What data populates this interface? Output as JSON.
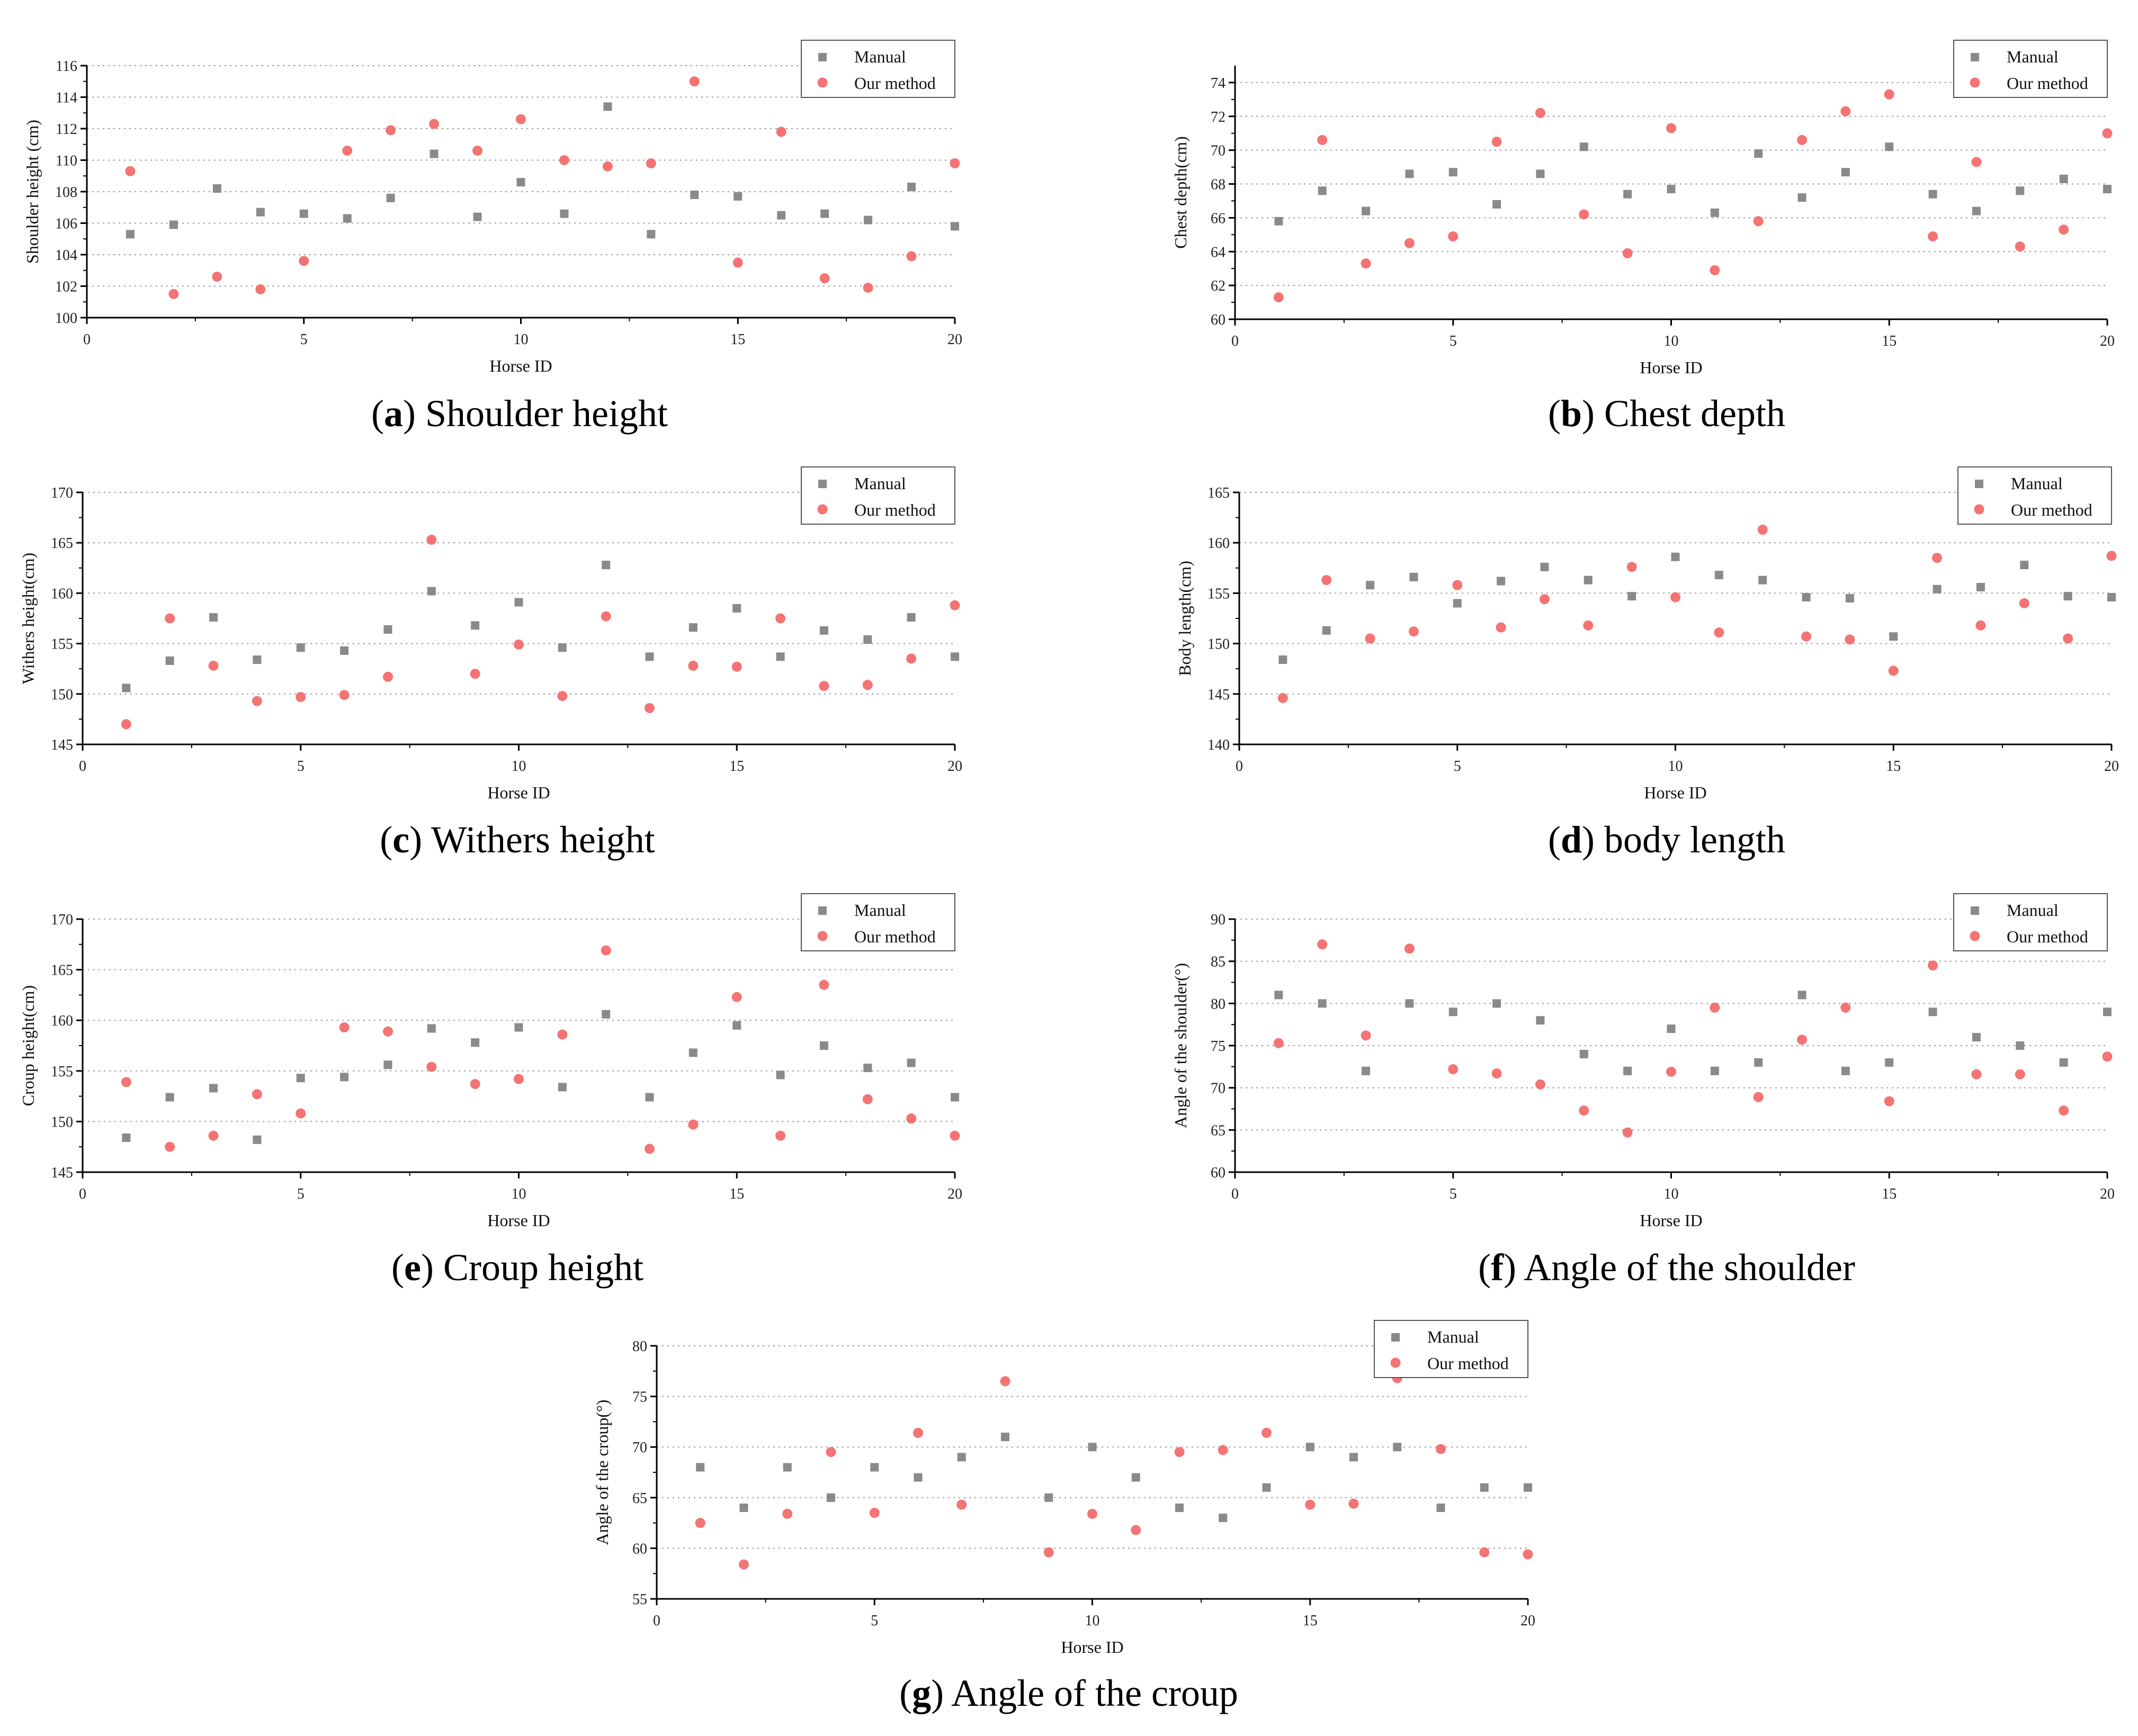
{
  "colors": {
    "manual": "#8a8a8a",
    "our_method": "#f47373",
    "grid": "#9a9a9a",
    "axis": "#000000"
  },
  "chart_data": [
    {
      "id": "a",
      "type": "scatter",
      "caption_letter": "a",
      "caption_text": "Shoulder height",
      "xlabel": "Horse ID",
      "ylabel": "Shoulder height (cm)",
      "xlim": [
        0,
        20
      ],
      "xticks": [
        0,
        5,
        10,
        15,
        20
      ],
      "ylim": [
        100,
        116
      ],
      "yticks": [
        100,
        102,
        104,
        106,
        108,
        110,
        112,
        114,
        116
      ],
      "legend": [
        "Manual",
        "Our method"
      ],
      "x": [
        1,
        2,
        3,
        4,
        5,
        6,
        7,
        8,
        9,
        10,
        11,
        12,
        13,
        14,
        15,
        16,
        17,
        18,
        19,
        20
      ],
      "series": [
        {
          "name": "Manual",
          "values": [
            105.3,
            105.9,
            108.2,
            106.7,
            106.6,
            106.3,
            107.6,
            110.4,
            106.4,
            108.6,
            106.6,
            113.4,
            105.3,
            107.8,
            107.7,
            106.5,
            106.6,
            106.2,
            108.3,
            105.8
          ]
        },
        {
          "name": "Our method",
          "values": [
            109.3,
            101.5,
            102.6,
            101.8,
            103.6,
            110.6,
            111.9,
            112.3,
            110.6,
            112.6,
            110.0,
            109.6,
            109.8,
            115.0,
            103.5,
            111.8,
            102.5,
            101.9,
            103.9,
            109.8
          ]
        }
      ]
    },
    {
      "id": "b",
      "type": "scatter",
      "caption_letter": "b",
      "caption_text": "Chest depth",
      "xlabel": "Horse ID",
      "ylabel": "Chest depth(cm)",
      "xlim": [
        0,
        20
      ],
      "xticks": [
        0,
        5,
        10,
        15,
        20
      ],
      "ylim": [
        60,
        75
      ],
      "yticks": [
        60,
        62,
        64,
        66,
        68,
        70,
        72,
        74
      ],
      "legend": [
        "Manual",
        "Our method"
      ],
      "x": [
        1,
        2,
        3,
        4,
        5,
        6,
        7,
        8,
        9,
        10,
        11,
        12,
        13,
        14,
        15,
        16,
        17,
        18,
        19,
        20
      ],
      "series": [
        {
          "name": "Manual",
          "values": [
            65.8,
            67.6,
            66.4,
            68.6,
            68.7,
            66.8,
            68.6,
            70.2,
            67.4,
            67.7,
            66.3,
            69.8,
            67.2,
            68.7,
            70.2,
            67.4,
            66.4,
            67.6,
            68.3,
            67.7
          ]
        },
        {
          "name": "Our method",
          "values": [
            61.3,
            70.6,
            63.3,
            64.5,
            64.9,
            70.5,
            72.2,
            66.2,
            63.9,
            71.3,
            62.9,
            65.8,
            70.6,
            72.3,
            73.3,
            64.9,
            69.3,
            64.3,
            65.3,
            71.0
          ]
        }
      ]
    },
    {
      "id": "c",
      "type": "scatter",
      "caption_letter": "c",
      "caption_text": "Withers height",
      "xlabel": "Horse ID",
      "ylabel": "Withers height(cm)",
      "xlim": [
        0,
        20
      ],
      "xticks": [
        0,
        5,
        10,
        15,
        20
      ],
      "ylim": [
        145,
        170
      ],
      "yticks": [
        145,
        150,
        155,
        160,
        165,
        170
      ],
      "legend": [
        "Manual",
        "Our method"
      ],
      "x": [
        1,
        2,
        3,
        4,
        5,
        6,
        7,
        8,
        9,
        10,
        11,
        12,
        13,
        14,
        15,
        16,
        17,
        18,
        19,
        20
      ],
      "series": [
        {
          "name": "Manual",
          "values": [
            150.6,
            153.3,
            157.6,
            153.4,
            154.6,
            154.3,
            156.4,
            160.2,
            156.8,
            159.1,
            154.6,
            162.8,
            153.7,
            156.6,
            158.5,
            153.7,
            156.3,
            155.4,
            157.6,
            153.7
          ]
        },
        {
          "name": "Our method",
          "values": [
            147.0,
            157.5,
            152.8,
            149.3,
            149.7,
            149.9,
            151.7,
            165.3,
            152.0,
            154.9,
            149.8,
            157.7,
            148.6,
            152.8,
            152.7,
            157.5,
            150.8,
            150.9,
            153.5,
            158.8
          ]
        }
      ]
    },
    {
      "id": "d",
      "type": "scatter",
      "caption_letter": "d",
      "caption_text": "body length",
      "xlabel": "Horse ID",
      "ylabel": "Body length(cm)",
      "xlim": [
        0,
        20
      ],
      "xticks": [
        0,
        5,
        10,
        15,
        20
      ],
      "ylim": [
        140,
        165
      ],
      "yticks": [
        140,
        145,
        150,
        155,
        160,
        165
      ],
      "legend": [
        "Manual",
        "Our method"
      ],
      "x": [
        1,
        2,
        3,
        4,
        5,
        6,
        7,
        8,
        9,
        10,
        11,
        12,
        13,
        14,
        15,
        16,
        17,
        18,
        19,
        20
      ],
      "series": [
        {
          "name": "Manual",
          "values": [
            148.4,
            151.3,
            155.8,
            156.6,
            154.0,
            156.2,
            157.6,
            156.3,
            154.7,
            158.6,
            156.8,
            156.3,
            154.6,
            154.5,
            150.7,
            155.4,
            155.6,
            157.8,
            154.7,
            154.6
          ]
        },
        {
          "name": "Our method",
          "values": [
            144.6,
            156.3,
            150.5,
            151.2,
            155.8,
            151.6,
            154.4,
            151.8,
            157.6,
            154.6,
            151.1,
            161.3,
            150.7,
            150.4,
            147.3,
            158.5,
            151.8,
            154.0,
            150.5,
            158.7
          ]
        }
      ]
    },
    {
      "id": "e",
      "type": "scatter",
      "caption_letter": "e",
      "caption_text": "Croup height",
      "xlabel": "Horse ID",
      "ylabel": "Croup height(cm)",
      "xlim": [
        0,
        20
      ],
      "xticks": [
        0,
        5,
        10,
        15,
        20
      ],
      "ylim": [
        145,
        170
      ],
      "yticks": [
        145,
        150,
        155,
        160,
        165,
        170
      ],
      "legend": [
        "Manual",
        "Our method"
      ],
      "x": [
        1,
        2,
        3,
        4,
        5,
        6,
        7,
        8,
        9,
        10,
        11,
        12,
        13,
        14,
        15,
        16,
        17,
        18,
        19,
        20
      ],
      "series": [
        {
          "name": "Manual",
          "values": [
            148.4,
            152.4,
            153.3,
            148.2,
            154.3,
            154.4,
            155.6,
            159.2,
            157.8,
            159.3,
            153.4,
            160.6,
            152.4,
            156.8,
            159.5,
            154.6,
            157.5,
            155.3,
            155.8,
            152.4
          ]
        },
        {
          "name": "Our method",
          "values": [
            153.9,
            147.5,
            148.6,
            152.7,
            150.8,
            159.3,
            158.9,
            155.4,
            153.7,
            154.2,
            158.6,
            166.9,
            147.3,
            149.7,
            162.3,
            148.6,
            163.5,
            152.2,
            150.3,
            148.6
          ]
        }
      ]
    },
    {
      "id": "f",
      "type": "scatter",
      "caption_letter": "f",
      "caption_text": "Angle of the shoulder",
      "xlabel": "Horse ID",
      "ylabel": "Angle of the shoulder(°)",
      "xlim": [
        0,
        20
      ],
      "xticks": [
        0,
        5,
        10,
        15,
        20
      ],
      "ylim": [
        60,
        90
      ],
      "yticks": [
        60,
        65,
        70,
        75,
        80,
        85,
        90
      ],
      "legend": [
        "Manual",
        "Our method"
      ],
      "x": [
        1,
        2,
        3,
        4,
        5,
        6,
        7,
        8,
        9,
        10,
        11,
        12,
        13,
        14,
        15,
        16,
        17,
        18,
        19,
        20
      ],
      "series": [
        {
          "name": "Manual",
          "values": [
            81,
            80,
            72,
            80,
            79,
            80,
            78,
            74,
            72,
            77,
            72,
            73,
            81,
            72,
            73,
            79,
            76,
            75,
            73,
            79
          ]
        },
        {
          "name": "Our method",
          "values": [
            75.3,
            87.0,
            76.2,
            86.5,
            72.2,
            71.7,
            70.4,
            67.3,
            64.7,
            71.9,
            79.5,
            68.9,
            75.7,
            79.5,
            68.4,
            84.5,
            71.6,
            71.6,
            67.3,
            73.7
          ]
        }
      ]
    },
    {
      "id": "g",
      "type": "scatter",
      "caption_letter": "g",
      "caption_text": "Angle of the croup",
      "xlabel": "Horse ID",
      "ylabel": "Angle of the croup(°)",
      "xlim": [
        0,
        20
      ],
      "xticks": [
        0,
        5,
        10,
        15,
        20
      ],
      "ylim": [
        55,
        80
      ],
      "yticks": [
        55,
        60,
        65,
        70,
        75,
        80
      ],
      "legend": [
        "Manual",
        "Our method"
      ],
      "x": [
        1,
        2,
        3,
        4,
        5,
        6,
        7,
        8,
        9,
        10,
        11,
        12,
        13,
        14,
        15,
        16,
        17,
        18,
        19,
        20
      ],
      "series": [
        {
          "name": "Manual",
          "values": [
            68,
            64,
            68,
            65,
            68,
            67,
            69,
            71,
            65,
            70,
            67,
            64,
            63,
            66,
            70,
            69,
            70,
            64,
            66,
            66
          ]
        },
        {
          "name": "Our method",
          "values": [
            62.5,
            58.4,
            63.4,
            69.5,
            63.5,
            71.4,
            64.3,
            76.5,
            59.6,
            63.4,
            61.8,
            69.5,
            69.7,
            71.4,
            64.3,
            64.4,
            76.8,
            69.8,
            59.6,
            59.4
          ]
        }
      ]
    }
  ]
}
